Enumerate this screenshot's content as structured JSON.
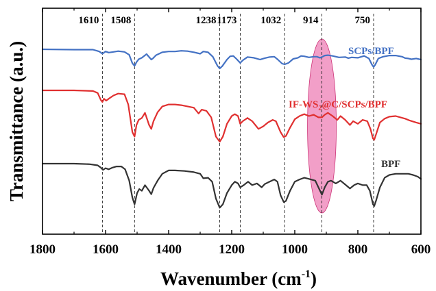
{
  "chart_data": {
    "type": "line",
    "xlabel": "Wavenumber (cm",
    "xlabel_sup": "-1",
    "xlabel_close": ")",
    "ylabel": "Transmittance (a.u.)",
    "xlim": [
      1800,
      600
    ],
    "x_reversed": true,
    "x_ticks": [
      "1800",
      "1600",
      "1400",
      "1200",
      "1000",
      "800",
      "600"
    ],
    "y_ticks": "none",
    "reference_lines": [
      {
        "x": 1610,
        "label": "1610"
      },
      {
        "x": 1508,
        "label": "1508"
      },
      {
        "x": 1238,
        "label": "1238"
      },
      {
        "x": 1173,
        "label": "1173"
      },
      {
        "x": 1032,
        "label": "1032"
      },
      {
        "x": 914,
        "label": "914"
      },
      {
        "x": 750,
        "label": "750"
      }
    ],
    "highlight": {
      "type": "ellipse",
      "center_x": 914,
      "color": "#e8509a"
    },
    "series": [
      {
        "name": "SCPs/BPF",
        "color": "#4472c4",
        "points": [
          [
            1800,
            0.2
          ],
          [
            1700,
            0.21
          ],
          [
            1640,
            0.21
          ],
          [
            1620,
            0.26
          ],
          [
            1610,
            0.32
          ],
          [
            1600,
            0.26
          ],
          [
            1590,
            0.29
          ],
          [
            1575,
            0.27
          ],
          [
            1560,
            0.25
          ],
          [
            1540,
            0.27
          ],
          [
            1525,
            0.35
          ],
          [
            1515,
            0.58
          ],
          [
            1508,
            0.65
          ],
          [
            1502,
            0.55
          ],
          [
            1495,
            0.47
          ],
          [
            1485,
            0.43
          ],
          [
            1470,
            0.33
          ],
          [
            1455,
            0.48
          ],
          [
            1450,
            0.45
          ],
          [
            1440,
            0.36
          ],
          [
            1420,
            0.28
          ],
          [
            1400,
            0.26
          ],
          [
            1380,
            0.26
          ],
          [
            1360,
            0.24
          ],
          [
            1340,
            0.25
          ],
          [
            1320,
            0.28
          ],
          [
            1300,
            0.32
          ],
          [
            1290,
            0.26
          ],
          [
            1275,
            0.28
          ],
          [
            1260,
            0.4
          ],
          [
            1245,
            0.65
          ],
          [
            1238,
            0.72
          ],
          [
            1230,
            0.66
          ],
          [
            1215,
            0.48
          ],
          [
            1205,
            0.39
          ],
          [
            1195,
            0.38
          ],
          [
            1185,
            0.46
          ],
          [
            1173,
            0.57
          ],
          [
            1165,
            0.5
          ],
          [
            1150,
            0.41
          ],
          [
            1130,
            0.43
          ],
          [
            1110,
            0.48
          ],
          [
            1095,
            0.44
          ],
          [
            1080,
            0.41
          ],
          [
            1065,
            0.4
          ],
          [
            1055,
            0.47
          ],
          [
            1040,
            0.59
          ],
          [
            1032,
            0.61
          ],
          [
            1020,
            0.57
          ],
          [
            1005,
            0.46
          ],
          [
            990,
            0.43
          ],
          [
            980,
            0.38
          ],
          [
            970,
            0.39
          ],
          [
            955,
            0.42
          ],
          [
            940,
            0.4
          ],
          [
            930,
            0.4
          ],
          [
            920,
            0.43
          ],
          [
            914,
            0.41
          ],
          [
            905,
            0.37
          ],
          [
            895,
            0.36
          ],
          [
            880,
            0.38
          ],
          [
            860,
            0.42
          ],
          [
            840,
            0.41
          ],
          [
            830,
            0.44
          ],
          [
            820,
            0.42
          ],
          [
            800,
            0.43
          ],
          [
            780,
            0.38
          ],
          [
            765,
            0.45
          ],
          [
            755,
            0.62
          ],
          [
            750,
            0.68
          ],
          [
            745,
            0.62
          ],
          [
            735,
            0.45
          ],
          [
            720,
            0.4
          ],
          [
            700,
            0.37
          ],
          [
            680,
            0.37
          ],
          [
            660,
            0.4
          ],
          [
            650,
            0.44
          ],
          [
            640,
            0.45
          ],
          [
            630,
            0.47
          ],
          [
            615,
            0.45
          ],
          [
            600,
            0.48
          ]
        ]
      },
      {
        "name": "IF-WS₂@C/SCPs/BPF",
        "name_main": "IF-WS",
        "name_sub": "2",
        "name_rest": "@C/SCPs/BPF",
        "color": "#e03030",
        "points": [
          [
            1800,
            0.2
          ],
          [
            1700,
            0.2
          ],
          [
            1640,
            0.21
          ],
          [
            1625,
            0.24
          ],
          [
            1615,
            0.35
          ],
          [
            1610,
            0.38
          ],
          [
            1605,
            0.33
          ],
          [
            1598,
            0.36
          ],
          [
            1590,
            0.33
          ],
          [
            1575,
            0.28
          ],
          [
            1560,
            0.25
          ],
          [
            1540,
            0.26
          ],
          [
            1528,
            0.42
          ],
          [
            1515,
            0.85
          ],
          [
            1508,
            0.92
          ],
          [
            1502,
            0.74
          ],
          [
            1495,
            0.66
          ],
          [
            1485,
            0.63
          ],
          [
            1475,
            0.55
          ],
          [
            1462,
            0.74
          ],
          [
            1455,
            0.8
          ],
          [
            1448,
            0.68
          ],
          [
            1435,
            0.54
          ],
          [
            1420,
            0.45
          ],
          [
            1400,
            0.42
          ],
          [
            1380,
            0.42
          ],
          [
            1360,
            0.43
          ],
          [
            1340,
            0.45
          ],
          [
            1320,
            0.47
          ],
          [
            1305,
            0.56
          ],
          [
            1295,
            0.5
          ],
          [
            1280,
            0.52
          ],
          [
            1265,
            0.62
          ],
          [
            1250,
            0.92
          ],
          [
            1238,
            1.0
          ],
          [
            1228,
            0.92
          ],
          [
            1215,
            0.72
          ],
          [
            1200,
            0.6
          ],
          [
            1190,
            0.57
          ],
          [
            1180,
            0.6
          ],
          [
            1173,
            0.72
          ],
          [
            1165,
            0.68
          ],
          [
            1150,
            0.63
          ],
          [
            1135,
            0.68
          ],
          [
            1115,
            0.8
          ],
          [
            1100,
            0.76
          ],
          [
            1085,
            0.7
          ],
          [
            1070,
            0.66
          ],
          [
            1060,
            0.68
          ],
          [
            1045,
            0.85
          ],
          [
            1035,
            0.93
          ],
          [
            1028,
            0.91
          ],
          [
            1015,
            0.78
          ],
          [
            1000,
            0.65
          ],
          [
            985,
            0.6
          ],
          [
            970,
            0.57
          ],
          [
            955,
            0.6
          ],
          [
            940,
            0.58
          ],
          [
            925,
            0.62
          ],
          [
            914,
            0.62
          ],
          [
            905,
            0.58
          ],
          [
            895,
            0.55
          ],
          [
            880,
            0.6
          ],
          [
            865,
            0.66
          ],
          [
            855,
            0.6
          ],
          [
            840,
            0.66
          ],
          [
            825,
            0.74
          ],
          [
            815,
            0.68
          ],
          [
            800,
            0.72
          ],
          [
            785,
            0.66
          ],
          [
            770,
            0.68
          ],
          [
            760,
            0.8
          ],
          [
            752,
            0.95
          ],
          [
            748,
            0.97
          ],
          [
            742,
            0.88
          ],
          [
            730,
            0.7
          ],
          [
            715,
            0.64
          ],
          [
            700,
            0.61
          ],
          [
            680,
            0.6
          ],
          [
            665,
            0.62
          ],
          [
            650,
            0.64
          ],
          [
            635,
            0.67
          ],
          [
            615,
            0.7
          ],
          [
            600,
            0.72
          ]
        ]
      },
      {
        "name": "BPF",
        "color": "#333333",
        "points": [
          [
            1800,
            0.2
          ],
          [
            1700,
            0.2
          ],
          [
            1650,
            0.21
          ],
          [
            1625,
            0.23
          ],
          [
            1615,
            0.27
          ],
          [
            1608,
            0.31
          ],
          [
            1600,
            0.28
          ],
          [
            1590,
            0.3
          ],
          [
            1578,
            0.27
          ],
          [
            1565,
            0.25
          ],
          [
            1550,
            0.25
          ],
          [
            1538,
            0.3
          ],
          [
            1525,
            0.5
          ],
          [
            1515,
            0.8
          ],
          [
            1508,
            0.92
          ],
          [
            1500,
            0.72
          ],
          [
            1493,
            0.65
          ],
          [
            1485,
            0.68
          ],
          [
            1475,
            0.58
          ],
          [
            1462,
            0.68
          ],
          [
            1455,
            0.74
          ],
          [
            1448,
            0.63
          ],
          [
            1435,
            0.5
          ],
          [
            1420,
            0.38
          ],
          [
            1400,
            0.32
          ],
          [
            1380,
            0.32
          ],
          [
            1350,
            0.33
          ],
          [
            1320,
            0.35
          ],
          [
            1300,
            0.38
          ],
          [
            1290,
            0.46
          ],
          [
            1275,
            0.45
          ],
          [
            1262,
            0.52
          ],
          [
            1250,
            0.82
          ],
          [
            1238,
            0.98
          ],
          [
            1228,
            0.92
          ],
          [
            1215,
            0.72
          ],
          [
            1200,
            0.58
          ],
          [
            1190,
            0.52
          ],
          [
            1180,
            0.55
          ],
          [
            1173,
            0.62
          ],
          [
            1162,
            0.58
          ],
          [
            1148,
            0.52
          ],
          [
            1135,
            0.58
          ],
          [
            1120,
            0.55
          ],
          [
            1105,
            0.62
          ],
          [
            1095,
            0.56
          ],
          [
            1080,
            0.52
          ],
          [
            1065,
            0.48
          ],
          [
            1055,
            0.52
          ],
          [
            1045,
            0.76
          ],
          [
            1035,
            0.88
          ],
          [
            1028,
            0.86
          ],
          [
            1015,
            0.68
          ],
          [
            1000,
            0.52
          ],
          [
            985,
            0.48
          ],
          [
            970,
            0.45
          ],
          [
            955,
            0.47
          ],
          [
            935,
            0.5
          ],
          [
            925,
            0.62
          ],
          [
            914,
            0.75
          ],
          [
            905,
            0.62
          ],
          [
            895,
            0.52
          ],
          [
            885,
            0.5
          ],
          [
            870,
            0.55
          ],
          [
            855,
            0.5
          ],
          [
            840,
            0.57
          ],
          [
            825,
            0.64
          ],
          [
            812,
            0.58
          ],
          [
            800,
            0.55
          ],
          [
            785,
            0.58
          ],
          [
            772,
            0.58
          ],
          [
            762,
            0.68
          ],
          [
            752,
            0.92
          ],
          [
            748,
            0.95
          ],
          [
            742,
            0.85
          ],
          [
            730,
            0.62
          ],
          [
            715,
            0.45
          ],
          [
            700,
            0.4
          ],
          [
            680,
            0.38
          ],
          [
            660,
            0.38
          ],
          [
            640,
            0.38
          ],
          [
            625,
            0.4
          ],
          [
            610,
            0.43
          ],
          [
            600,
            0.47
          ]
        ]
      }
    ]
  }
}
